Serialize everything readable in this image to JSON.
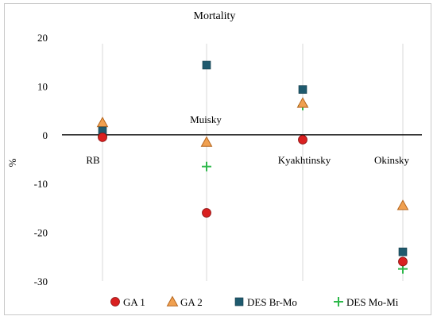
{
  "chart_data": {
    "type": "scatter",
    "title": "Mortality",
    "ylabel": "%",
    "xlabel": "",
    "ylim": [
      -30,
      20
    ],
    "yticks": [
      20,
      10,
      0,
      -10,
      -20,
      -30
    ],
    "grid": "vertical",
    "legend_position": "bottom",
    "categories": [
      "RB",
      "Muisky",
      "Kyakhtinsky",
      "Okinsky"
    ],
    "series": [
      {
        "name": "GA 1",
        "marker": "circle",
        "color": "#d92020",
        "values": [
          -0.5,
          -16,
          -1,
          -26
        ]
      },
      {
        "name": "GA 2",
        "marker": "triangle",
        "color": "#f0a050",
        "values": [
          2.5,
          -1.5,
          6.5,
          -14.5
        ]
      },
      {
        "name": "DES Br-Mo",
        "marker": "square",
        "color": "#1f5a6e",
        "values": [
          0.8,
          14.3,
          9.3,
          -24
        ]
      },
      {
        "name": "DES Mo-Mi",
        "marker": "plus",
        "color": "#2db84a",
        "values": [
          -0.3,
          -6.5,
          6,
          -27.5
        ]
      }
    ]
  }
}
